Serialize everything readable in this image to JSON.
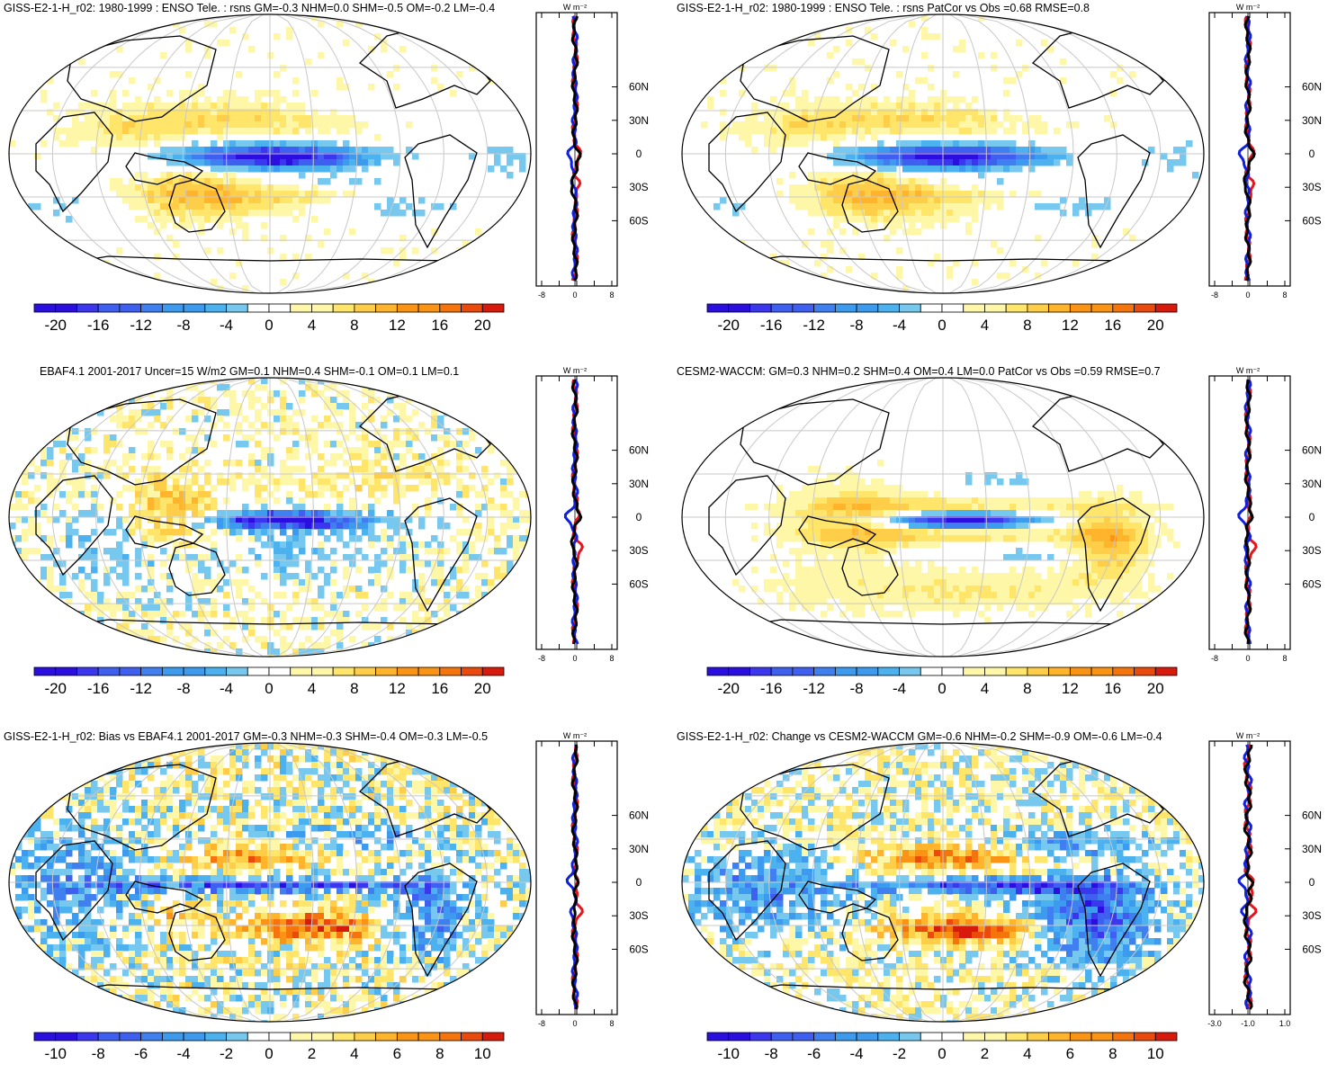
{
  "colors": {
    "scale20": [
      "#2a0fe0",
      "#3a37ee",
      "#3f5ff0",
      "#3f7ff0",
      "#3d9bef",
      "#4bb2ef",
      "#76c8ef",
      "#ffffff",
      "#ffffff",
      "#fff7a8",
      "#ffe56a",
      "#ffce48",
      "#ffb42c",
      "#fb9414",
      "#f5740c",
      "#ea4a0c",
      "#d81a0c"
    ],
    "scale10": [
      "#2a0fe0",
      "#3a37ee",
      "#3f5ff0",
      "#3f7ff0",
      "#3d9bef",
      "#4bb2ef",
      "#76c8ef",
      "#ffffff",
      "#ffffff",
      "#fff7a8",
      "#ffe56a",
      "#ffce48",
      "#ffb42c",
      "#fb9414",
      "#f5740c",
      "#ea4a0c",
      "#d81a0c"
    ],
    "model_line": "#e8141c",
    "obs_line": "#1020e0",
    "ref_line": "#000000"
  },
  "panels": [
    {
      "title": "GISS-E2-1-H_r02: 1980-1999 : ENSO Tele. : rsns GM=-0.3 NHM=0.0 SHM=-0.5 OM=-0.2 LM=-0.4",
      "colorbar_ticks": [
        "-20",
        "-16",
        "-12",
        "-8",
        "-4",
        "0",
        "4",
        "8",
        "12",
        "16",
        "20"
      ],
      "profile_units": "W m⁻²",
      "profile_xticks": [
        "-8",
        "0",
        "8"
      ],
      "lat_ticks": [
        "60N",
        "30N",
        "0",
        "30S",
        "60S"
      ],
      "scale": "scale20",
      "pattern": "enso_model"
    },
    {
      "title": "GISS-E2-1-H_r02: 1980-1999 : ENSO Tele. : rsns PatCor vs Obs =0.68 RMSE=0.8",
      "colorbar_ticks": [
        "-20",
        "-16",
        "-12",
        "-8",
        "-4",
        "0",
        "4",
        "8",
        "12",
        "16",
        "20"
      ],
      "profile_units": "W m⁻²",
      "profile_xticks": [
        "-8",
        "0",
        "8"
      ],
      "lat_ticks": [
        "60N",
        "30N",
        "0",
        "30S",
        "60S"
      ],
      "scale": "scale20",
      "pattern": "enso_model"
    },
    {
      "title": "EBAF4.1 2001-2017 Uncer=15 W/m2 GM=0.1 NHM=0.4 SHM=-0.1 OM=0.1 LM=0.1",
      "colorbar_ticks": [
        "-20",
        "-16",
        "-12",
        "-8",
        "-4",
        "0",
        "4",
        "8",
        "12",
        "16",
        "20"
      ],
      "profile_units": "W m⁻²",
      "profile_xticks": [
        "-8",
        "0",
        "8"
      ],
      "lat_ticks": [
        "60N",
        "30N",
        "0",
        "30S",
        "60S"
      ],
      "scale": "scale20",
      "pattern": "obs"
    },
    {
      "title": "CESM2-WACCM: GM=0.3 NHM=0.2 SHM=0.4 OM=0.4 LM=0.0 PatCor vs Obs =0.59 RMSE=0.7",
      "colorbar_ticks": [
        "-20",
        "-16",
        "-12",
        "-8",
        "-4",
        "0",
        "4",
        "8",
        "12",
        "16",
        "20"
      ],
      "profile_units": "W m⁻²",
      "profile_xticks": [
        "-8",
        "0",
        "8"
      ],
      "lat_ticks": [
        "60N",
        "30N",
        "0",
        "30S",
        "60S"
      ],
      "scale": "scale20",
      "pattern": "cesm"
    },
    {
      "title": "GISS-E2-1-H_r02: Bias vs EBAF4.1 2001-2017 GM=-0.3 NHM=-0.3 SHM=-0.4 OM=-0.3 LM=-0.5",
      "colorbar_ticks": [
        "-10",
        "-8",
        "-6",
        "-4",
        "-2",
        "0",
        "2",
        "4",
        "6",
        "8",
        "10"
      ],
      "profile_units": "W m⁻²",
      "profile_xticks": [
        "-8",
        "0",
        "8"
      ],
      "lat_ticks": [
        "60N",
        "30N",
        "0",
        "30S",
        "60S"
      ],
      "scale": "scale10",
      "pattern": "bias"
    },
    {
      "title": "GISS-E2-1-H_r02: Change vs CESM2-WACCM GM=-0.6 NHM=-0.2 SHM=-0.9 OM=-0.6 LM=-0.4",
      "colorbar_ticks": [
        "-10",
        "-8",
        "-6",
        "-4",
        "-2",
        "0",
        "2",
        "4",
        "6",
        "8",
        "10"
      ],
      "profile_units": "W m⁻²",
      "profile_xticks": [
        "-3.0",
        "-1.0",
        "1.0"
      ],
      "lat_ticks": [
        "60N",
        "30N",
        "0",
        "30S",
        "60S"
      ],
      "scale": "scale10",
      "pattern": "change"
    }
  ]
}
